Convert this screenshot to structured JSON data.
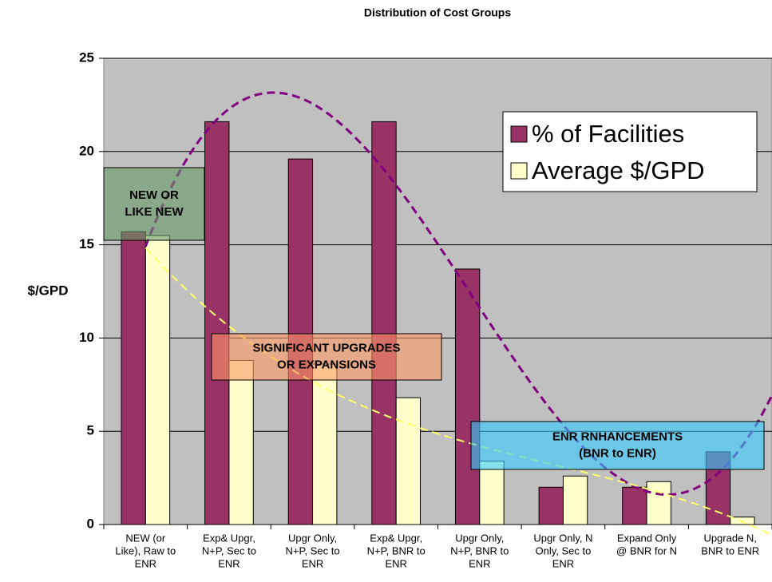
{
  "chart_data": {
    "type": "bar",
    "title": "Distribution of Cost Groups",
    "y_label": "$/GPD",
    "categories": [
      [
        "NEW (or",
        "Like), Raw to",
        "ENR"
      ],
      [
        "Exp& Upgr,",
        "N+P, Sec to",
        "ENR"
      ],
      [
        "Upgr Only,",
        "N+P, Sec to",
        "ENR"
      ],
      [
        "Exp& Upgr,",
        "N+P, BNR to",
        "ENR"
      ],
      [
        "Upgr Only,",
        "N+P, BNR to",
        "ENR"
      ],
      [
        "Upgr Only, N",
        "Only, Sec to",
        "ENR"
      ],
      [
        "Expand Only",
        "@ BNR for N"
      ],
      [
        "Upgrade N,",
        "BNR to ENR"
      ]
    ],
    "series": [
      {
        "name": "% of Facilities",
        "color": "#993366",
        "trend_color": "#800080",
        "values": [
          15.7,
          21.6,
          19.6,
          21.6,
          13.7,
          2.0,
          2.0,
          3.9
        ]
      },
      {
        "name": "Average $/GPD",
        "color": "#FFFFCC",
        "trend_color": "#FFFF66",
        "values": [
          15.5,
          8.8,
          8.6,
          6.8,
          3.4,
          2.6,
          2.3,
          0.4
        ]
      }
    ],
    "ylim": [
      0,
      25
    ],
    "yticks": [
      0,
      5,
      10,
      15,
      20,
      25
    ],
    "grid": true,
    "trendline": true,
    "legend": "top-right",
    "annotations": [
      {
        "lines": [
          "NEW OR",
          "LIKE NEW"
        ],
        "color": "#669966"
      },
      {
        "lines": [
          "SIGNIFICANT UPGRADES",
          "OR EXPANSIONS"
        ],
        "color": "#FF9966"
      },
      {
        "lines": [
          "ENR RNHANCEMENTS",
          "(BNR to ENR)"
        ],
        "color": "#33CCFF"
      }
    ]
  }
}
